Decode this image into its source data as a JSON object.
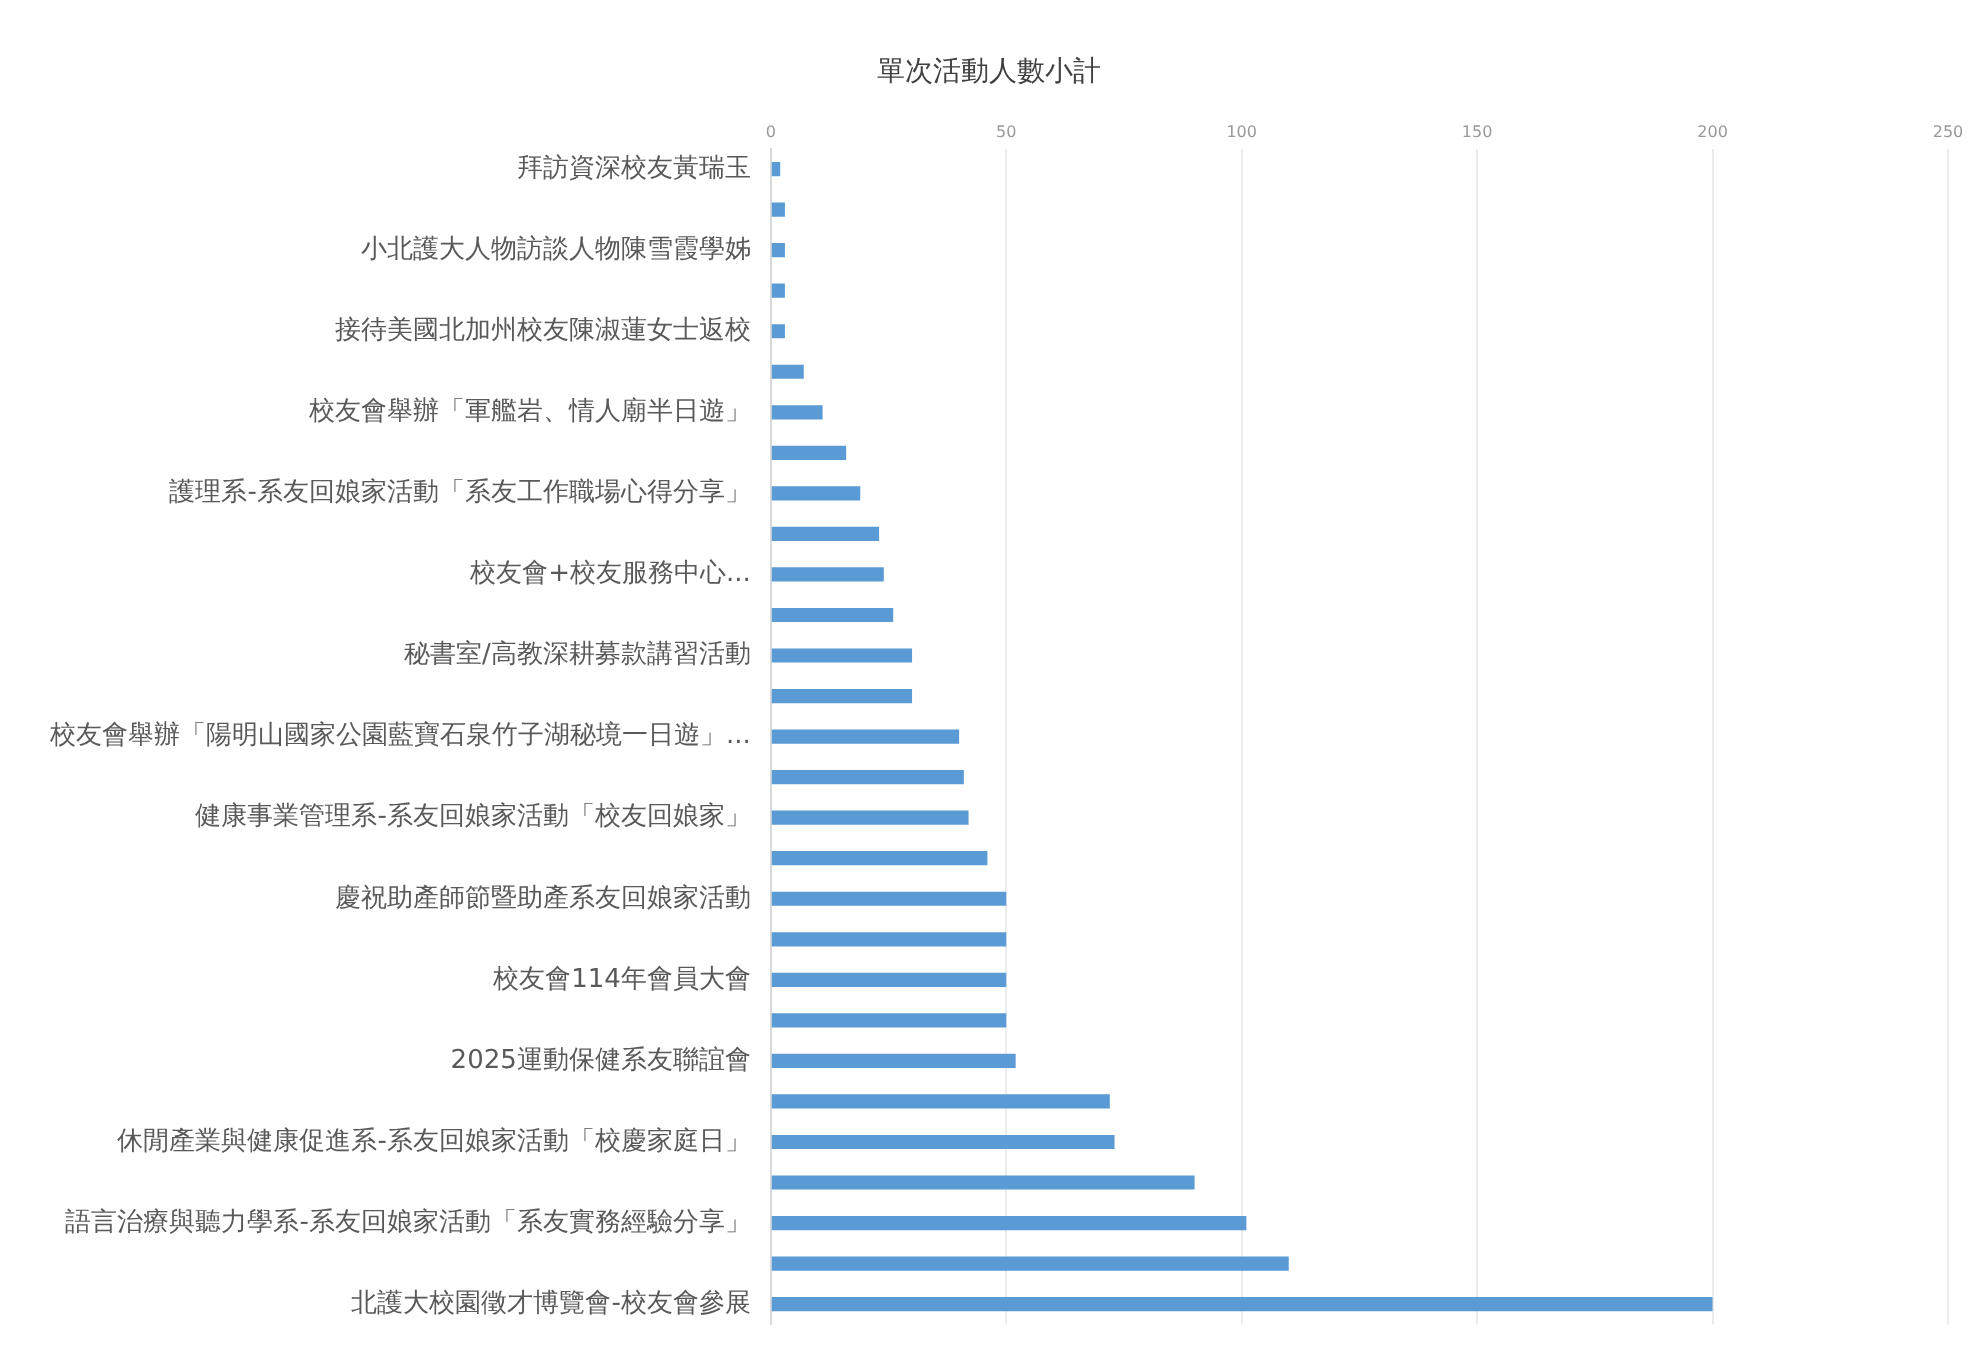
{
  "chart_data": {
    "type": "bar",
    "orientation": "horizontal",
    "title": "單次活動人數小計",
    "categories": [
      "拜訪資深校友黃瑞玉",
      null,
      "小北護大人物訪談人物陳雪霞學姊",
      null,
      "接待美國北加州校友陳淑蓮女士返校",
      null,
      "校友會舉辦「軍艦岩、情人廟半日遊」",
      null,
      "護理系-系友回娘家活動「系友工作職場心得分享」",
      null,
      "校友會+校友服務中心...",
      null,
      "秘書室/高教深耕募款講習活動",
      null,
      "校友會舉辦「陽明山國家公園藍寶石泉竹子湖秘境一日遊」...",
      null,
      "健康事業管理系-系友回娘家活動「校友回娘家」",
      null,
      "慶祝助產師節暨助產系友回娘家活動",
      null,
      "校友會114年會員大會",
      null,
      "2025運動保健系友聯誼會",
      null,
      "休閒產業與健康促進系-系友回娘家活動「校慶家庭日」",
      null,
      "語言治療與聽力學系-系友回娘家活動「系友實務經驗分享」",
      null,
      "北護大校園徵才博覽會-校友會參展"
    ],
    "values": [
      2,
      3,
      3,
      3,
      3,
      7,
      11,
      16,
      19,
      23,
      24,
      26,
      30,
      30,
      40,
      41,
      42,
      46,
      50,
      50,
      50,
      50,
      52,
      72,
      73,
      90,
      101,
      110,
      200
    ],
    "color": "#5b9bd5",
    "xlim": [
      0,
      250
    ],
    "xticks": [
      0,
      50,
      100,
      150,
      200,
      250
    ],
    "grid": "x",
    "legend": false
  }
}
